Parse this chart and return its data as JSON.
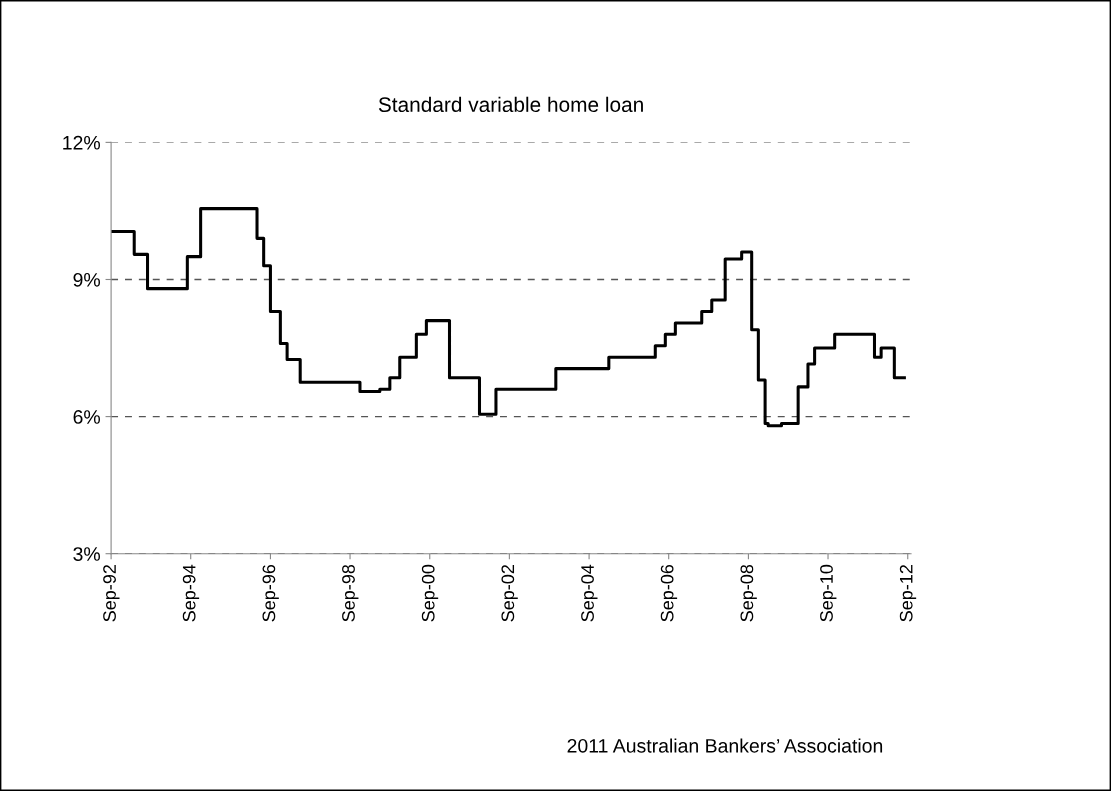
{
  "chart_data": {
    "type": "step",
    "title": "Standard variable home loan",
    "x": [
      "1992-09",
      "1993-04",
      "1993-08",
      "1994-08",
      "1994-12",
      "1996-05",
      "1996-07",
      "1996-09",
      "1996-12",
      "1997-02",
      "1997-06",
      "1997-08",
      "1998-12",
      "1999-06",
      "1999-09",
      "1999-12",
      "2000-01",
      "2000-05",
      "2000-08",
      "2001-01",
      "2001-03",
      "2001-08",
      "2001-12",
      "2002-04",
      "2002-05",
      "2003-11",
      "2005-03",
      "2006-05",
      "2006-08",
      "2006-11",
      "2007-07",
      "2007-10",
      "2008-02",
      "2008-07",
      "2008-10",
      "2008-12",
      "2009-02",
      "2009-03",
      "2009-07",
      "2009-12",
      "2010-03",
      "2010-05",
      "2010-11",
      "2011-11",
      "2012-01",
      "2012-05",
      "2012-08"
    ],
    "series": [
      {
        "color": "#000000",
        "values": [
          10.05,
          9.55,
          8.8,
          9.5,
          10.55,
          9.9,
          9.3,
          8.3,
          7.6,
          7.25,
          6.75,
          6.75,
          6.55,
          6.6,
          6.85,
          7.3,
          7.3,
          7.8,
          8.1,
          8.1,
          6.85,
          6.85,
          6.05,
          6.05,
          6.6,
          7.05,
          7.3,
          7.55,
          7.8,
          8.05,
          8.3,
          8.55,
          9.45,
          9.6,
          7.9,
          6.8,
          5.85,
          5.8,
          5.85,
          6.65,
          7.15,
          7.5,
          7.8,
          7.3,
          7.5,
          6.85,
          6.85
        ]
      }
    ],
    "xlim": [
      "1992-09",
      "2012-10"
    ],
    "xticks": [
      {
        "value": "1992-09",
        "label": "Sep-92"
      },
      {
        "value": "1994-09",
        "label": "Sep-94"
      },
      {
        "value": "1996-09",
        "label": "Sep-96"
      },
      {
        "value": "1998-09",
        "label": "Sep-98"
      },
      {
        "value": "2000-09",
        "label": "Sep-00"
      },
      {
        "value": "2002-09",
        "label": "Sep-02"
      },
      {
        "value": "2004-09",
        "label": "Sep-04"
      },
      {
        "value": "2006-09",
        "label": "Sep-06"
      },
      {
        "value": "2008-09",
        "label": "Sep-08"
      },
      {
        "value": "2010-09",
        "label": "Sep-10"
      },
      {
        "value": "2012-09",
        "label": "Sep-12"
      }
    ],
    "ylim": [
      3,
      12
    ],
    "yticks": [
      {
        "value": 3,
        "label": "3%"
      },
      {
        "value": 6,
        "label": "6%"
      },
      {
        "value": 9,
        "label": "9%"
      },
      {
        "value": 12,
        "label": "12%"
      }
    ],
    "grid": "y",
    "legend": false,
    "marker": "none",
    "line_style": "solid",
    "annotations": [
      "2011 Australian Bankers’ Association"
    ]
  }
}
